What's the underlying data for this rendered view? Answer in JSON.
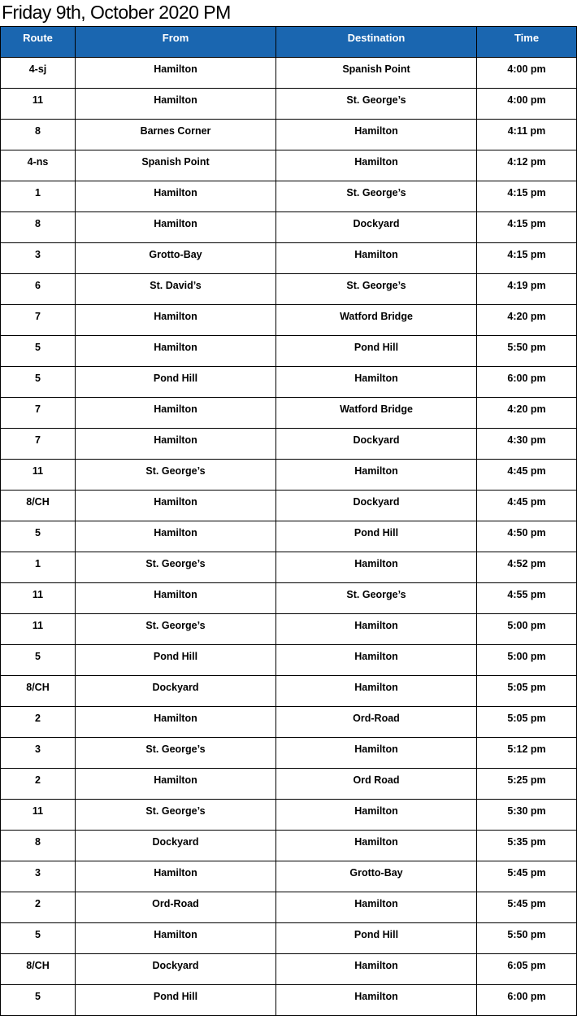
{
  "title": "Friday 9th, October 2020 PM",
  "columns": [
    "Route",
    "From",
    "Destination",
    "Time"
  ],
  "rows": [
    [
      "4-sj",
      "Hamilton",
      "Spanish Point",
      "4:00 pm"
    ],
    [
      "11",
      "Hamilton",
      "St. George’s",
      "4:00 pm"
    ],
    [
      "8",
      "Barnes Corner",
      "Hamilton",
      "4:11 pm"
    ],
    [
      "4-ns",
      "Spanish Point",
      "Hamilton",
      "4:12 pm"
    ],
    [
      "1",
      "Hamilton",
      "St. George’s",
      "4:15 pm"
    ],
    [
      "8",
      "Hamilton",
      "Dockyard",
      "4:15 pm"
    ],
    [
      "3",
      "Grotto-Bay",
      "Hamilton",
      "4:15 pm"
    ],
    [
      "6",
      "St. David’s",
      "St. George’s",
      "4:19 pm"
    ],
    [
      "7",
      "Hamilton",
      "Watford Bridge",
      "4:20 pm"
    ],
    [
      "5",
      "Hamilton",
      "Pond Hill",
      "5:50 pm"
    ],
    [
      "5",
      "Pond Hill",
      "Hamilton",
      "6:00 pm"
    ],
    [
      "7",
      "Hamilton",
      "Watford Bridge",
      "4:20 pm"
    ],
    [
      "7",
      "Hamilton",
      "Dockyard",
      "4:30 pm"
    ],
    [
      "11",
      "St. George’s",
      "Hamilton",
      "4:45 pm"
    ],
    [
      "8/CH",
      "Hamilton",
      "Dockyard",
      "4:45 pm"
    ],
    [
      "5",
      "Hamilton",
      "Pond Hill",
      "4:50 pm"
    ],
    [
      "1",
      "St. George’s",
      "Hamilton",
      "4:52 pm"
    ],
    [
      "11",
      "Hamilton",
      "St. George’s",
      "4:55 pm"
    ],
    [
      "11",
      "St. George’s",
      "Hamilton",
      "5:00 pm"
    ],
    [
      "5",
      "Pond Hill",
      "Hamilton",
      "5:00 pm"
    ],
    [
      "8/CH",
      "Dockyard",
      "Hamilton",
      "5:05 pm"
    ],
    [
      "2",
      "Hamilton",
      "Ord-Road",
      "5:05 pm"
    ],
    [
      "3",
      "St. George’s",
      "Hamilton",
      "5:12 pm"
    ],
    [
      "2",
      "Hamilton",
      "Ord Road",
      "5:25 pm"
    ],
    [
      "11",
      "St. George’s",
      "Hamilton",
      "5:30 pm"
    ],
    [
      "8",
      "Dockyard",
      "Hamilton",
      "5:35 pm"
    ],
    [
      "3",
      "Hamilton",
      "Grotto-Bay",
      "5:45 pm"
    ],
    [
      "2",
      "Ord-Road",
      "Hamilton",
      "5:45 pm"
    ],
    [
      "5",
      "Hamilton",
      "Pond Hill",
      "5:50 pm"
    ],
    [
      "8/CH",
      "Dockyard",
      "Hamilton",
      "6:05 pm"
    ],
    [
      "5",
      "Pond Hill",
      "Hamilton",
      "6:00 pm"
    ]
  ],
  "colors": {
    "header_bg": "#1a66b0",
    "header_text": "#ffffff"
  }
}
